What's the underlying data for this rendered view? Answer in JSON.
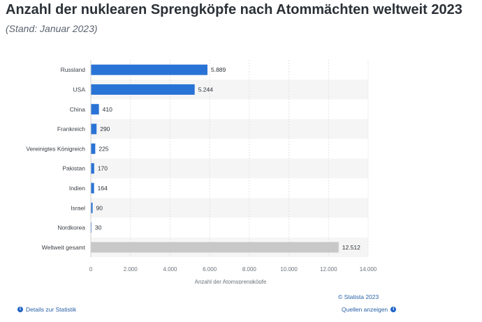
{
  "header": {
    "title": "Anzahl der nuklearen Sprengköpfe nach Atommächten weltweit 2023",
    "subtitle": "(Stand: Januar 2023)"
  },
  "chart_data": {
    "type": "bar",
    "orientation": "horizontal",
    "categories": [
      "Russland",
      "USA",
      "China",
      "Frankreich",
      "Vereinigtes Königreich",
      "Pakistan",
      "Indien",
      "Israel",
      "Nordkorea",
      "Weltweit gesamt"
    ],
    "values": [
      5889,
      5244,
      410,
      290,
      225,
      170,
      164,
      90,
      30,
      12512
    ],
    "value_labels": [
      "5.889",
      "5.244",
      "410",
      "290",
      "225",
      "170",
      "164",
      "90",
      "30",
      "12.512"
    ],
    "bar_colors": [
      "#2a73d6",
      "#2a73d6",
      "#2a73d6",
      "#2a73d6",
      "#2a73d6",
      "#2a73d6",
      "#2a73d6",
      "#2a73d6",
      "#2a73d6",
      "#c8c8c8"
    ],
    "xlim": [
      0,
      14000
    ],
    "x_ticks": [
      0,
      2000,
      4000,
      6000,
      8000,
      10000,
      12000,
      14000
    ],
    "x_tick_labels": [
      "0",
      "2.000",
      "4.000",
      "6.000",
      "8.000",
      "10.000",
      "12.000",
      "14.000"
    ],
    "xlabel": "Anzahl der Atomsprengköpfe",
    "ylabel": "",
    "grid": true
  },
  "footer": {
    "copyright": "© Statista 2023",
    "details_link": "Details zur Statistik",
    "sources_link": "Quellen anzeigen"
  },
  "colors": {
    "accent": "#2a73d6",
    "total_bar": "#c8c8c8",
    "stripe": "#f5f5f5",
    "link": "#2a61a6"
  }
}
